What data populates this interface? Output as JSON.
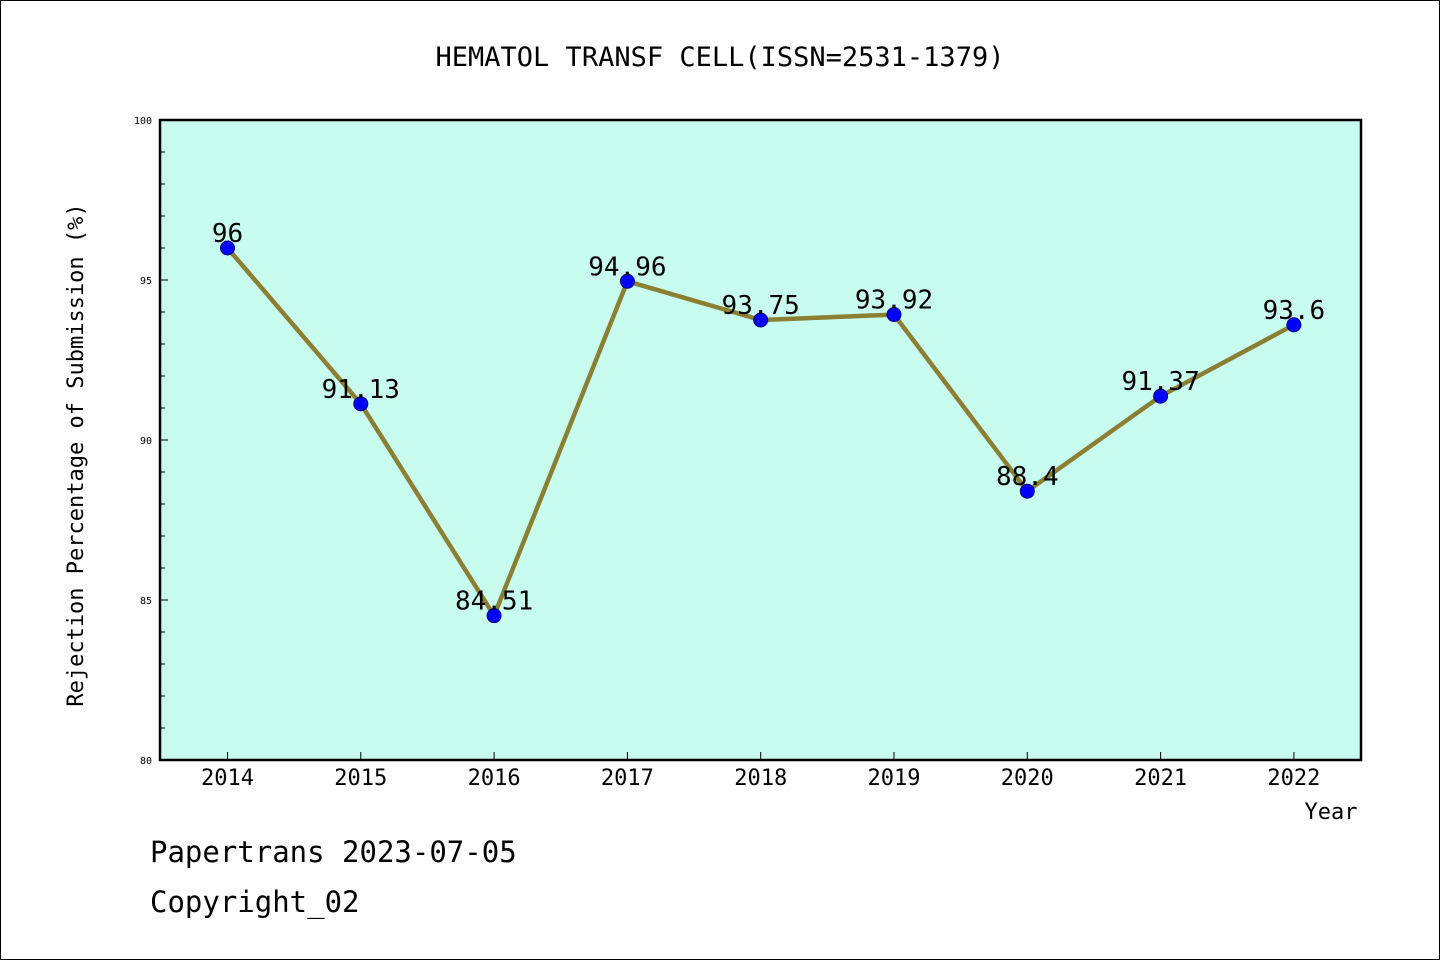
{
  "chart_data": {
    "type": "line",
    "title": "HEMATOL TRANSF CELL(ISSN=2531-1379)",
    "xlabel": "Year",
    "ylabel": "Rejection Percentage of Submission (%)",
    "categories": [
      "2014",
      "2015",
      "2016",
      "2017",
      "2018",
      "2019",
      "2020",
      "2021",
      "2022"
    ],
    "series": [
      {
        "values": [
          96,
          91.13,
          84.51,
          94.96,
          93.75,
          93.92,
          88.4,
          91.37,
          93.6
        ],
        "labels": [
          "96",
          "91.13",
          "84.51",
          "94.96",
          "93.75",
          "93.92",
          "88.4",
          "91.37",
          "93.6"
        ]
      }
    ],
    "ylim": [
      80,
      100
    ],
    "yticks": [
      "80",
      "85",
      "90",
      "95",
      "100"
    ],
    "grid": false,
    "colors": {
      "plot_background": "#c8fcee",
      "line": "#8b7f34",
      "marker": "#0000ff"
    }
  },
  "footer": {
    "line1": "Papertrans 2023-07-05",
    "line2": "Copyright_02"
  }
}
